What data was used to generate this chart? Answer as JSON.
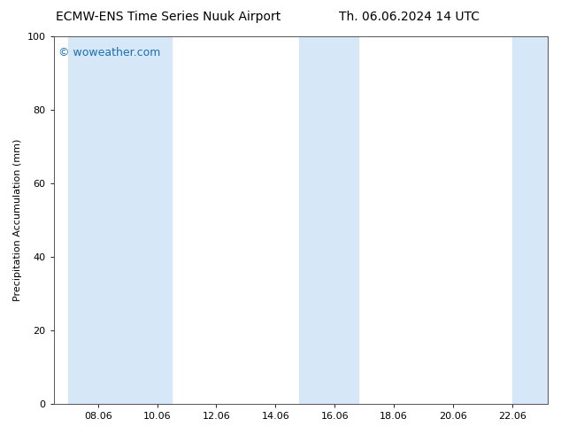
{
  "title_left": "ECMW-ENS Time Series Nuuk Airport",
  "title_right": "Th. 06.06.2024 14 UTC",
  "ylabel": "Precipitation Accumulation (mm)",
  "xlabel": "",
  "ylim": [
    0,
    100
  ],
  "yticks": [
    0,
    20,
    40,
    60,
    80,
    100
  ],
  "xtick_labels": [
    "08.06",
    "10.06",
    "12.06",
    "14.06",
    "16.06",
    "18.06",
    "20.06",
    "22.06"
  ],
  "xtick_positions": [
    8,
    10,
    12,
    14,
    16,
    18,
    20,
    22
  ],
  "background_color": "#ffffff",
  "shaded_bands": [
    {
      "x_start": 7.0,
      "x_end": 9.0,
      "color": "#d6e8f7"
    },
    {
      "x_start": 9.0,
      "x_end": 10.5,
      "color": "#d6e8f7"
    },
    {
      "x_start": 14.8,
      "x_end": 16.8,
      "color": "#d6e8f7"
    },
    {
      "x_start": 22.0,
      "x_end": 23.2,
      "color": "#d6e8f7"
    }
  ],
  "watermark_text": "© woweather.com",
  "watermark_color": "#1a6fb5",
  "watermark_fontsize": 9,
  "title_fontsize": 10,
  "tick_fontsize": 8,
  "ylabel_fontsize": 8,
  "axis_color": "#555555",
  "plot_bg_color": "#ffffff",
  "x_min": 6.5,
  "x_max": 23.2
}
